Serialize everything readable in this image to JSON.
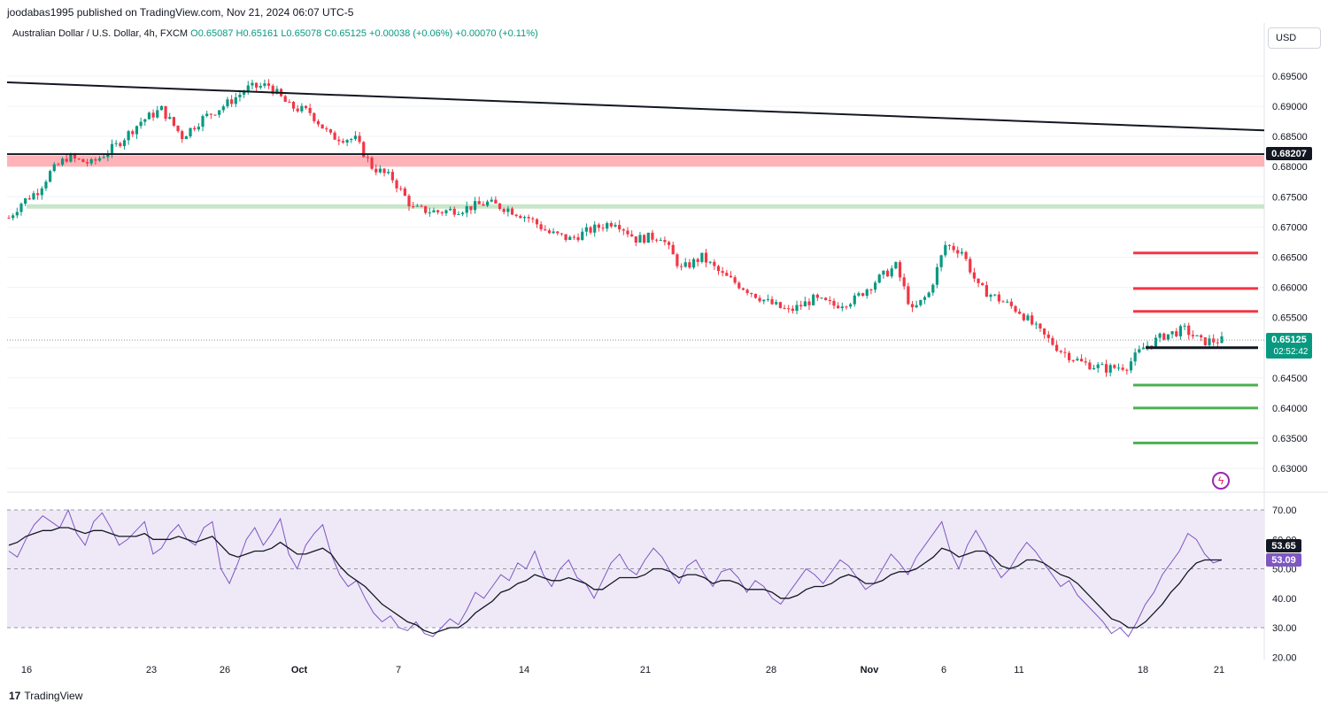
{
  "header": {
    "published": "joodabas1995 published on TradingView.com, Nov 21, 2024 06:07 UTC-5",
    "symbol": "Australian Dollar / U.S. Dollar, 4h, FXCM",
    "open": "O0.65087",
    "high": "H0.65161",
    "low": "L0.65078",
    "close": "C0.65125",
    "change": "+0.00038 (+0.06%)",
    "change2": "+0.00070 (+0.11%)"
  },
  "currency_button": "USD",
  "footer": {
    "brand": "TradingView"
  },
  "colors": {
    "up": "#089981",
    "down": "#f23645",
    "resistance": "#f23645",
    "support": "#4caf50",
    "rsi": "#7e57c2",
    "rsi_ma": "#131722"
  },
  "price_labels": {
    "last": "0.65125",
    "countdown": "02:52:42",
    "black_level": "0.68207"
  },
  "rsi_labels": {
    "ma": "53.65",
    "rsi": "53.09"
  },
  "chart_data": [
    {
      "type": "candlestick",
      "title": "Australian Dollar / U.S. Dollar, 4h, FXCM",
      "x_ticks": [
        "16",
        "23",
        "26",
        "Oct",
        "7",
        "14",
        "21",
        "28",
        "Nov",
        "6",
        "11",
        "18",
        "21"
      ],
      "y_ticks": [
        "0.69500",
        "0.69000",
        "0.68500",
        "0.68000",
        "0.67500",
        "0.67000",
        "0.66500",
        "0.66000",
        "0.65500",
        "0.65000",
        "0.64500",
        "0.64000",
        "0.63500",
        "0.63000"
      ],
      "ylim": [
        0.628,
        0.7
      ],
      "close_path": [
        {
          "t": 0,
          "v": 0.6715
        },
        {
          "t": 3,
          "v": 0.674
        },
        {
          "t": 7,
          "v": 0.676
        },
        {
          "t": 10,
          "v": 0.679
        },
        {
          "t": 14,
          "v": 0.6815
        },
        {
          "t": 20,
          "v": 0.6805
        },
        {
          "t": 26,
          "v": 0.6835
        },
        {
          "t": 32,
          "v": 0.6875
        },
        {
          "t": 37,
          "v": 0.6895
        },
        {
          "t": 42,
          "v": 0.685
        },
        {
          "t": 47,
          "v": 0.688
        },
        {
          "t": 53,
          "v": 0.6905
        },
        {
          "t": 58,
          "v": 0.693
        },
        {
          "t": 63,
          "v": 0.6935
        },
        {
          "t": 68,
          "v": 0.69
        },
        {
          "t": 73,
          "v": 0.689
        },
        {
          "t": 78,
          "v": 0.685
        },
        {
          "t": 84,
          "v": 0.6845
        },
        {
          "t": 88,
          "v": 0.68
        },
        {
          "t": 93,
          "v": 0.678
        },
        {
          "t": 98,
          "v": 0.673
        },
        {
          "t": 104,
          "v": 0.6725
        },
        {
          "t": 110,
          "v": 0.673
        },
        {
          "t": 116,
          "v": 0.674
        },
        {
          "t": 121,
          "v": 0.673
        },
        {
          "t": 126,
          "v": 0.6715
        },
        {
          "t": 131,
          "v": 0.669
        },
        {
          "t": 136,
          "v": 0.668
        },
        {
          "t": 141,
          "v": 0.6695
        },
        {
          "t": 147,
          "v": 0.671
        },
        {
          "t": 152,
          "v": 0.668
        },
        {
          "t": 158,
          "v": 0.6685
        },
        {
          "t": 163,
          "v": 0.663
        },
        {
          "t": 168,
          "v": 0.665
        },
        {
          "t": 173,
          "v": 0.662
        },
        {
          "t": 178,
          "v": 0.66
        },
        {
          "t": 184,
          "v": 0.6575
        },
        {
          "t": 189,
          "v": 0.656
        },
        {
          "t": 195,
          "v": 0.658
        },
        {
          "t": 200,
          "v": 0.657
        },
        {
          "t": 205,
          "v": 0.658
        },
        {
          "t": 210,
          "v": 0.661
        },
        {
          "t": 215,
          "v": 0.6635
        },
        {
          "t": 219,
          "v": 0.656
        },
        {
          "t": 223,
          "v": 0.659
        },
        {
          "t": 227,
          "v": 0.667
        },
        {
          "t": 231,
          "v": 0.666
        },
        {
          "t": 235,
          "v": 0.66
        },
        {
          "t": 240,
          "v": 0.658
        },
        {
          "t": 245,
          "v": 0.656
        },
        {
          "t": 250,
          "v": 0.6525
        },
        {
          "t": 255,
          "v": 0.6495
        },
        {
          "t": 260,
          "v": 0.6475
        },
        {
          "t": 266,
          "v": 0.6465
        },
        {
          "t": 271,
          "v": 0.647
        },
        {
          "t": 275,
          "v": 0.65
        },
        {
          "t": 280,
          "v": 0.652
        },
        {
          "t": 285,
          "v": 0.653
        },
        {
          "t": 289,
          "v": 0.651
        },
        {
          "t": 294,
          "v": 0.6512
        }
      ],
      "levels": {
        "resistance_red": [
          0.6657,
          0.6598,
          0.656
        ],
        "current_black": 0.65,
        "support_green": [
          0.6438,
          0.64,
          0.6342
        ],
        "horizontal_black": 0.68207,
        "red_zone": [
          0.68,
          0.6818
        ],
        "green_zone": 0.6734,
        "descending_trendline": [
          0.6925,
          0.6866
        ],
        "last_price": 0.65125
      }
    },
    {
      "type": "line",
      "title": "RSI",
      "y_ticks": [
        "70.00",
        "60.00",
        "50.00",
        "40.00",
        "30.00",
        "20.00"
      ],
      "ylim": [
        20,
        72
      ],
      "band": [
        30,
        70
      ],
      "series": [
        {
          "values": [
            56,
            54,
            60,
            65,
            68,
            66,
            64,
            70,
            62,
            58,
            66,
            69,
            64,
            58,
            60,
            63,
            66,
            55,
            57,
            62,
            65,
            60,
            58,
            64,
            66,
            50,
            45,
            52,
            60,
            64,
            58,
            62,
            67,
            55,
            50,
            58,
            62,
            65,
            55,
            48,
            44,
            46,
            40,
            35,
            32,
            34,
            30,
            29,
            32,
            28,
            27,
            30,
            33,
            31,
            36,
            42,
            40,
            44,
            48,
            46,
            52,
            50,
            56,
            48,
            44,
            50,
            53,
            47,
            45,
            40,
            46,
            52,
            55,
            50,
            48,
            53,
            57,
            54,
            49,
            45,
            51,
            53,
            48,
            44,
            49,
            50,
            47,
            42,
            46,
            44,
            40,
            38,
            42,
            46,
            50,
            48,
            45,
            49,
            53,
            51,
            47,
            43,
            45,
            50,
            55,
            52,
            48,
            54,
            58,
            62,
            66,
            56,
            50,
            58,
            63,
            58,
            52,
            47,
            50,
            55,
            59,
            56,
            52,
            48,
            44,
            46,
            41,
            38,
            35,
            32,
            28,
            30,
            27,
            32,
            38,
            42,
            48,
            52,
            56,
            62,
            60,
            55,
            52,
            53
          ]
        },
        {
          "values": [
            58,
            59,
            61,
            62,
            63,
            63,
            64,
            64,
            63,
            62,
            63,
            63,
            62,
            61,
            61,
            61,
            62,
            60,
            60,
            60,
            61,
            60,
            59,
            60,
            61,
            58,
            55,
            54,
            55,
            56,
            56,
            57,
            59,
            57,
            55,
            55,
            56,
            57,
            55,
            51,
            48,
            46,
            44,
            41,
            38,
            36,
            34,
            32,
            31,
            29,
            28,
            29,
            30,
            30,
            32,
            35,
            37,
            39,
            42,
            43,
            45,
            46,
            48,
            47,
            46,
            46,
            47,
            46,
            45,
            43,
            43,
            45,
            47,
            47,
            47,
            48,
            50,
            50,
            49,
            47,
            48,
            48,
            47,
            45,
            46,
            46,
            45,
            43,
            43,
            43,
            42,
            40,
            40,
            41,
            43,
            44,
            44,
            45,
            47,
            48,
            47,
            45,
            45,
            46,
            48,
            49,
            49,
            50,
            52,
            54,
            57,
            56,
            54,
            55,
            56,
            56,
            54,
            51,
            50,
            51,
            53,
            53,
            52,
            50,
            48,
            47,
            45,
            42,
            39,
            36,
            33,
            32,
            30,
            30,
            32,
            35,
            38,
            42,
            45,
            49,
            52,
            53,
            53,
            53
          ]
        }
      ]
    }
  ]
}
